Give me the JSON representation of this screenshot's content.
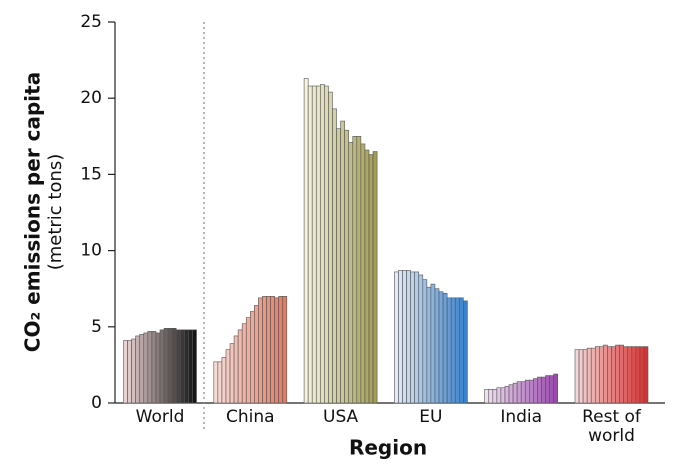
{
  "chart_data": {
    "type": "grouped-bar",
    "y_label": "CO₂ emissions per capita",
    "y_sublabel": "(metric tons)",
    "x_label": "Region",
    "ylim": [
      0,
      25
    ],
    "yticks": [
      0,
      5,
      10,
      15,
      20,
      25
    ],
    "groups": [
      {
        "name": "World",
        "colors": [
          "#ecd3d3",
          "#151515"
        ],
        "values": [
          4.1,
          4.1,
          4.2,
          4.4,
          4.5,
          4.6,
          4.7,
          4.7,
          4.6,
          4.8,
          4.9,
          4.9,
          4.9,
          4.8,
          4.8,
          4.8,
          4.8,
          4.8
        ]
      },
      {
        "name": "China",
        "colors": [
          "#f7dcd6",
          "#e47b62"
        ],
        "values": [
          2.7,
          2.7,
          3.0,
          3.5,
          3.9,
          4.4,
          4.8,
          5.2,
          5.6,
          6.0,
          6.4,
          6.9,
          7.0,
          7.0,
          7.0,
          6.9,
          7.0,
          7.0
        ]
      },
      {
        "name": "USA",
        "colors": [
          "#f5f3dc",
          "#a39e55"
        ],
        "values": [
          21.3,
          20.8,
          20.8,
          20.8,
          20.9,
          20.8,
          20.4,
          19.3,
          18.0,
          18.5,
          17.9,
          17.1,
          17.5,
          17.5,
          17.0,
          16.6,
          16.3,
          16.5
        ]
      },
      {
        "name": "EU",
        "colors": [
          "#e2ecf6",
          "#3a82cc"
        ],
        "values": [
          8.6,
          8.7,
          8.7,
          8.7,
          8.6,
          8.6,
          8.4,
          8.1,
          7.6,
          7.8,
          7.5,
          7.3,
          7.2,
          6.9,
          6.9,
          6.9,
          6.9,
          6.7
        ]
      },
      {
        "name": "India",
        "colors": [
          "#f0e1f1",
          "#9a4cad"
        ],
        "values": [
          0.9,
          0.9,
          0.9,
          1.0,
          1.0,
          1.1,
          1.2,
          1.3,
          1.4,
          1.4,
          1.5,
          1.5,
          1.6,
          1.7,
          1.7,
          1.8,
          1.8,
          1.9
        ]
      },
      {
        "name": "Rest of world",
        "colors": [
          "#f5d6d6",
          "#d73232"
        ],
        "values": [
          3.5,
          3.5,
          3.5,
          3.6,
          3.6,
          3.7,
          3.7,
          3.8,
          3.7,
          3.7,
          3.8,
          3.8,
          3.7,
          3.7,
          3.7,
          3.7,
          3.7,
          3.7
        ]
      }
    ]
  }
}
